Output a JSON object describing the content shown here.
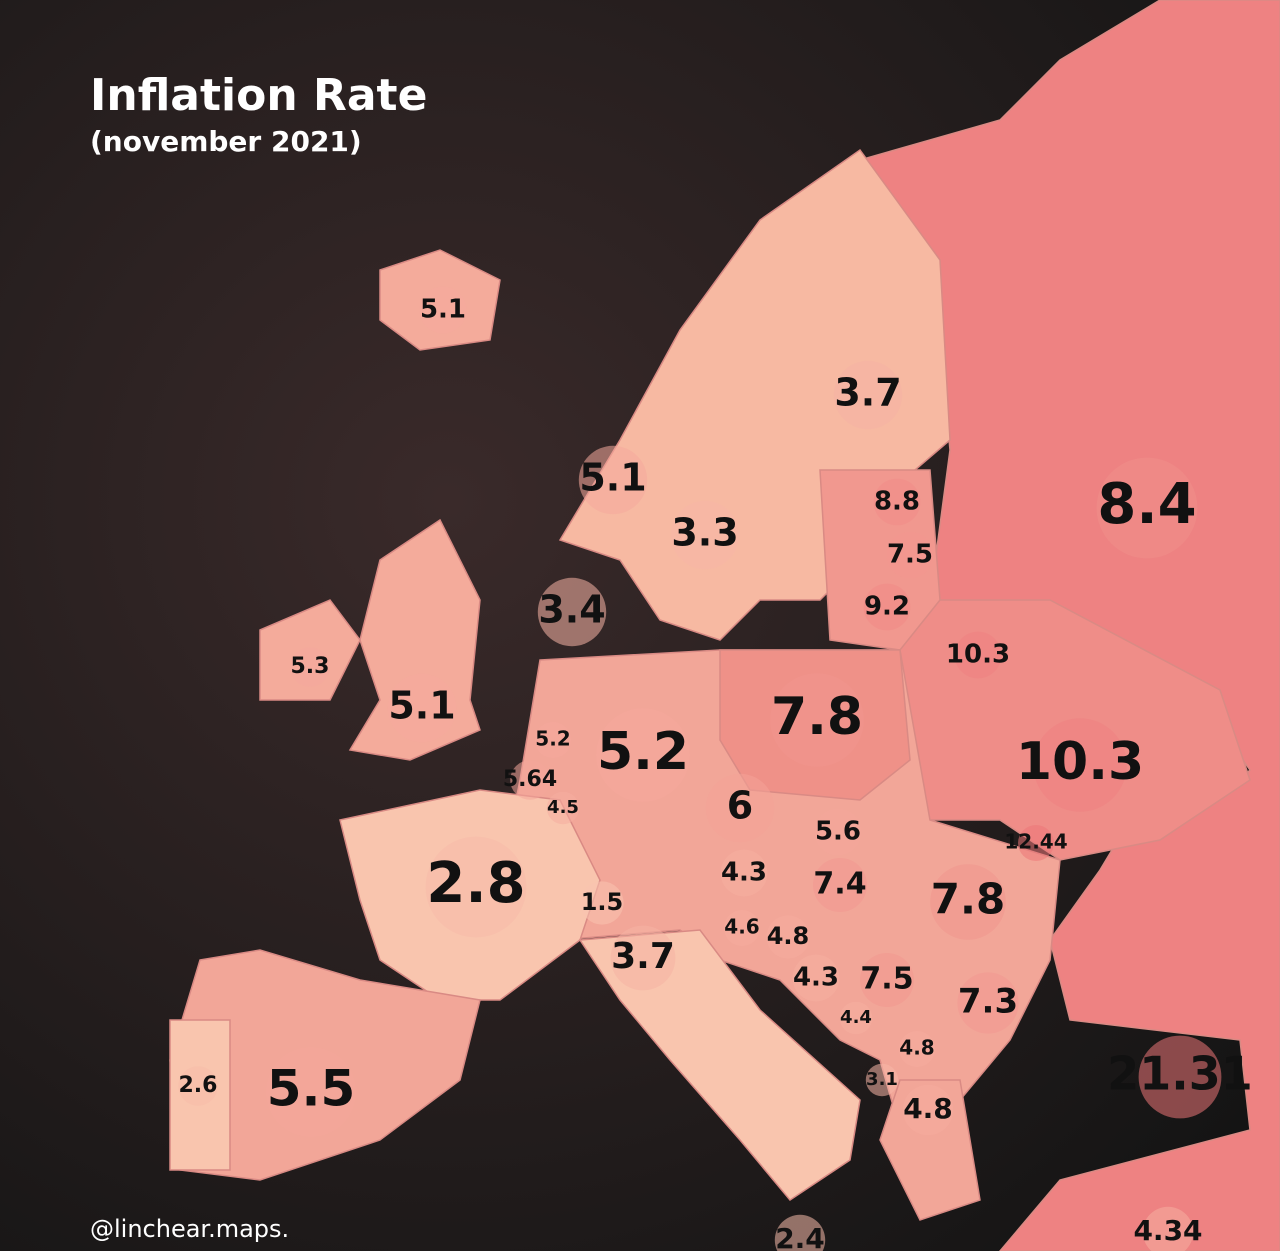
{
  "title": "Inflation Rate",
  "subtitle": "(november 2021)",
  "credit": "@linchear.maps.",
  "regions": [
    {
      "value": 5.1
    },
    {
      "value": 5.1
    },
    {
      "value": 3.3
    },
    {
      "value": 3.7
    },
    {
      "value": 8.8
    },
    {
      "value": 7.5
    },
    {
      "value": 9.2
    },
    {
      "value": 10.3
    },
    {
      "value": 8.4
    },
    {
      "value": 3.4
    },
    {
      "value": 5.3
    },
    {
      "value": 5.1
    },
    {
      "value": 5.2
    },
    {
      "value": 5.64
    },
    {
      "value": 4.5
    },
    {
      "value": 5.2
    },
    {
      "value": 7.8
    },
    {
      "value": 10.3
    },
    {
      "value": 6
    },
    {
      "value": 5.6
    },
    {
      "value": 12.44
    },
    {
      "value": 4.3
    },
    {
      "value": 7.4
    },
    {
      "value": 7.8
    },
    {
      "value": 2.8
    },
    {
      "value": 1.5
    },
    {
      "value": 3.7
    },
    {
      "value": 4.6
    },
    {
      "value": 4.8
    },
    {
      "value": 4.3
    },
    {
      "value": 7.5
    },
    {
      "value": 7.3
    },
    {
      "value": 4.4
    },
    {
      "value": 4.8
    },
    {
      "value": 3.1
    },
    {
      "value": 4.8
    },
    {
      "value": 21.31
    },
    {
      "value": 2.6
    },
    {
      "value": 5.5
    },
    {
      "value": 2.4
    },
    {
      "value": 4.34
    }
  ]
}
